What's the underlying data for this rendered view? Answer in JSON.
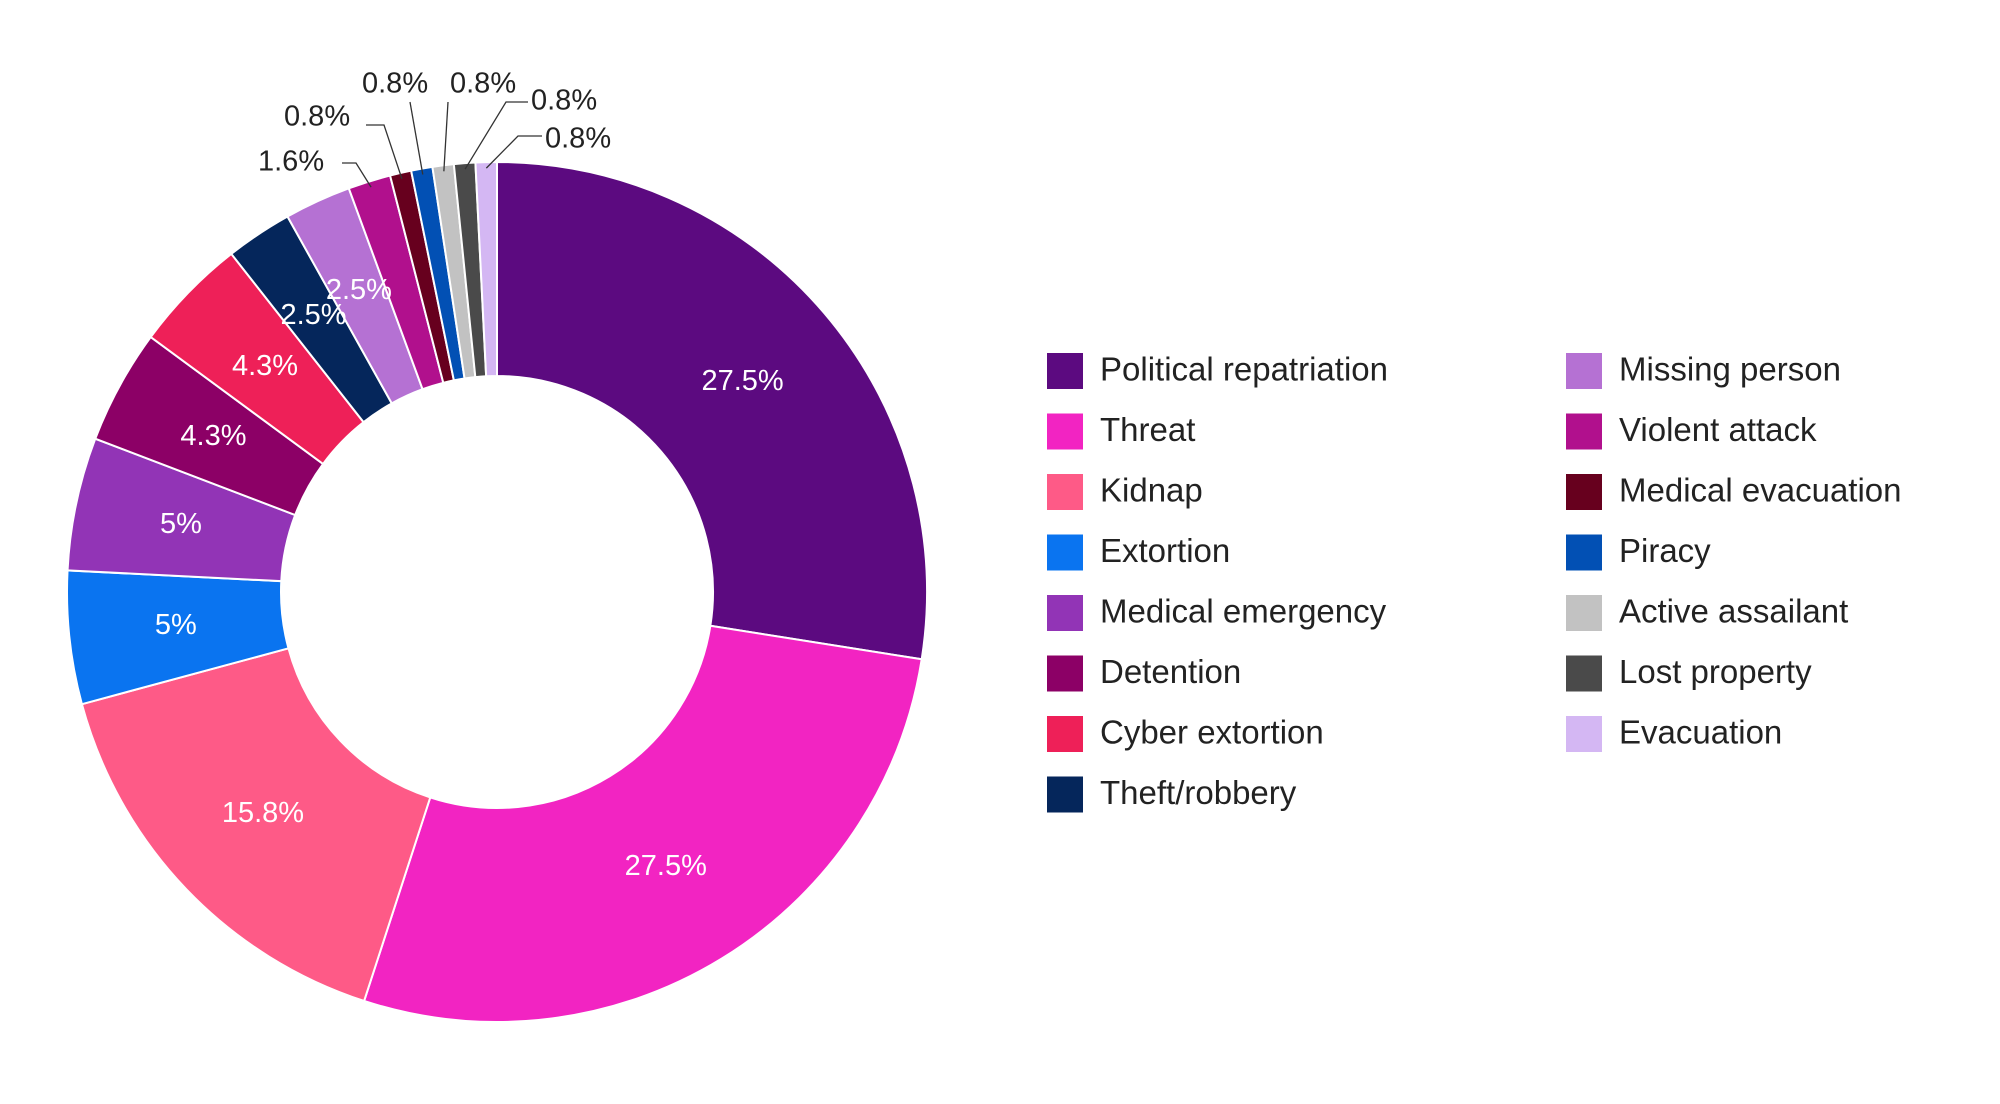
{
  "chart_data": {
    "type": "pie",
    "donut": true,
    "legend_position": "right",
    "slices": [
      {
        "label": "Political repatriation",
        "value": 27.5,
        "value_label": "27.5%",
        "color": "#5c0a80"
      },
      {
        "label": "Threat",
        "value": 27.5,
        "value_label": "27.5%",
        "color": "#f224c2"
      },
      {
        "label": "Kidnap",
        "value": 15.8,
        "value_label": "15.8%",
        "color": "#fe5a87"
      },
      {
        "label": "Extortion",
        "value": 5,
        "value_label": "5%",
        "color": "#0a74f0"
      },
      {
        "label": "Medical emergency",
        "value": 5,
        "value_label": "5%",
        "color": "#9234b6"
      },
      {
        "label": "Detention",
        "value": 4.3,
        "value_label": "4.3%",
        "color": "#8c0066"
      },
      {
        "label": "Cyber extortion",
        "value": 4.3,
        "value_label": "4.3%",
        "color": "#ee2058"
      },
      {
        "label": "Theft/robbery",
        "value": 2.5,
        "value_label": "2.5%",
        "color": "#05265b"
      },
      {
        "label": "Missing person",
        "value": 2.5,
        "value_label": "2.5%",
        "color": "#b571d3"
      },
      {
        "label": "Violent attack",
        "value": 1.6,
        "value_label": "1.6%",
        "color": "#b1108d"
      },
      {
        "label": "Medical evacuation",
        "value": 0.8,
        "value_label": "0.8%",
        "color": "#67001e"
      },
      {
        "label": "Piracy",
        "value": 0.8,
        "value_label": "0.8%",
        "color": "#0250b4"
      },
      {
        "label": "Active assailant",
        "value": 0.8,
        "value_label": "0.8%",
        "color": "#c2c2c2"
      },
      {
        "label": "Lost property",
        "value": 0.8,
        "value_label": "0.8%",
        "color": "#4a4a4a"
      },
      {
        "label": "Evacuation",
        "value": 0.8,
        "value_label": "0.8%",
        "color": "#d4b7f3"
      }
    ]
  }
}
